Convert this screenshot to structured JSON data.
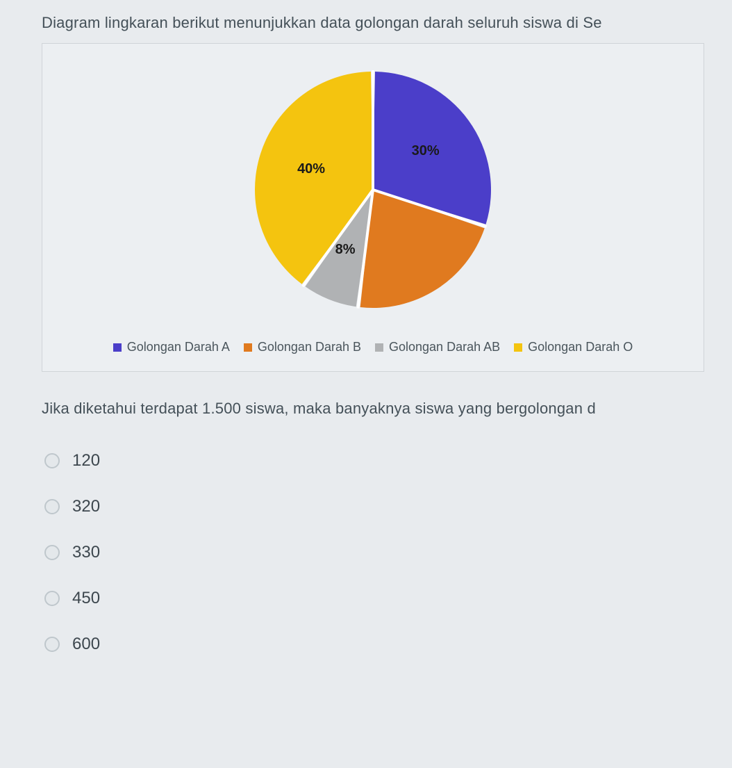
{
  "question": "Diagram lingkaran berikut menunjukkan data golongan darah seluruh siswa di Se",
  "subquestion": "Jika diketahui terdapat 1.500 siswa, maka banyaknya siswa yang bergolongan d",
  "chart": {
    "type": "pie",
    "background_color": "#eceff2",
    "border_color": "#d0d4d8",
    "slice_gap_deg": 2,
    "label_fontsize": 20,
    "label_fontweight": 700,
    "label_color": "#1a1a1a",
    "slices": [
      {
        "key": "A",
        "label": "Golongan Darah A",
        "value": 30,
        "color": "#4b3ec9",
        "data_label": "30%",
        "show_label": true
      },
      {
        "key": "B",
        "label": "Golongan Darah B",
        "value": 22,
        "color": "#e07a1f",
        "data_label": "",
        "show_label": false
      },
      {
        "key": "AB",
        "label": "Golongan Darah AB",
        "value": 8,
        "color": "#b0b2b4",
        "data_label": "8%",
        "show_label": true
      },
      {
        "key": "O",
        "label": "Golongan Darah O",
        "value": 40,
        "color": "#f4c40f",
        "data_label": "40%",
        "show_label": true
      }
    ],
    "legend": {
      "position": "bottom",
      "swatch_size": 12,
      "fontsize": 18,
      "color": "#4a555c"
    }
  },
  "options": [
    {
      "label": "120"
    },
    {
      "label": "320"
    },
    {
      "label": "330"
    },
    {
      "label": "450"
    },
    {
      "label": "600"
    }
  ]
}
